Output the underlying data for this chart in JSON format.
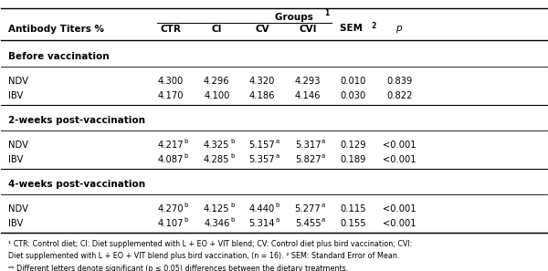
{
  "title_row": "Groups ¹",
  "header": [
    "Antibody Titers %",
    "CTR",
    "CI",
    "CV",
    "CVI",
    "SEM ²",
    "p"
  ],
  "sections": [
    {
      "section_title": "Before vaccination",
      "rows": [
        {
          "label": "NDV",
          "ctr": "4.300",
          "ci": "4.296",
          "cv": "4.320",
          "cvi": "4.293",
          "sem": "0.010",
          "p": "0.839",
          "superscripts": [
            "",
            "",
            "",
            "",
            "",
            ""
          ]
        },
        {
          "label": "IBV",
          "ctr": "4.170",
          "ci": "4.100",
          "cv": "4.186",
          "cvi": "4.146",
          "sem": "0.030",
          "p": "0.822",
          "superscripts": [
            "",
            "",
            "",
            "",
            "",
            ""
          ]
        }
      ]
    },
    {
      "section_title": "2-weeks post-vaccination",
      "rows": [
        {
          "label": "NDV",
          "ctr": "4.217",
          "ci": "4.325",
          "cv": "5.157",
          "cvi": "5.317",
          "sem": "0.129",
          "p": "<0.001",
          "superscripts": [
            "b",
            "b",
            "a",
            "a",
            "",
            ""
          ]
        },
        {
          "label": "IBV",
          "ctr": "4.087",
          "ci": "4.285",
          "cv": "5.357",
          "cvi": "5.827",
          "sem": "0.189",
          "p": "<0.001",
          "superscripts": [
            "b",
            "b",
            "a",
            "a",
            "",
            ""
          ]
        }
      ]
    },
    {
      "section_title": "4-weeks post-vaccination",
      "rows": [
        {
          "label": "NDV",
          "ctr": "4.270",
          "ci": "4.125",
          "cv": "4.440",
          "cvi": "5.277",
          "sem": "0.115",
          "p": "<0.001",
          "superscripts": [
            "b",
            "b",
            "b",
            "a",
            "",
            ""
          ]
        },
        {
          "label": "IBV",
          "ctr": "4.107",
          "ci": "4.346",
          "cv": "5.314",
          "cvi": "5.455",
          "sem": "0.155",
          "p": "<0.001",
          "superscripts": [
            "b",
            "b",
            "a",
            "a",
            "",
            ""
          ]
        }
      ]
    }
  ],
  "footnote1": "¹ CTR: Control diet; CI: Diet supplemented with L + EO + VIT blend; CV: Control diet plus bird vaccination; CVI:",
  "footnote2": "Diet supplemented with L + EO + VIT blend plus bird vaccination, (n = 16). ² SEM: Standard Error of Mean.",
  "footnote3": "ᵃᵇ Different letters denote significant (p ≤ 0.05) differences between the dietary treatments.",
  "bg_color": "#ffffff",
  "text_color": "#000000",
  "line_color": "#000000"
}
